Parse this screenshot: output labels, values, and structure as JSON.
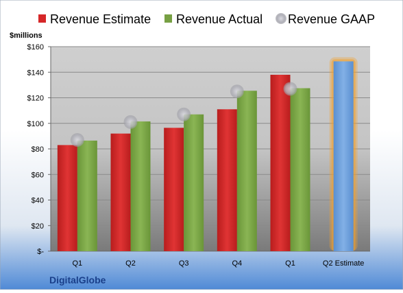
{
  "chart_data": {
    "type": "bar",
    "categories": [
      "Q1",
      "Q2",
      "Q3",
      "Q4",
      "Q1",
      "Q2 Estimate"
    ],
    "series": [
      {
        "name": "Revenue Estimate",
        "color": "#d62728",
        "values": [
          83,
          92,
          96.5,
          111,
          138,
          null
        ]
      },
      {
        "name": "Revenue Actual",
        "color": "#77a043",
        "values": [
          86.5,
          101.5,
          107,
          125.5,
          127.5,
          null
        ]
      },
      {
        "name": "Revenue GAAP",
        "color": "#c0c0c8",
        "marker": "circle",
        "values": [
          87,
          101,
          107,
          125,
          127,
          null
        ]
      }
    ],
    "highlight": {
      "category": "Q2 Estimate",
      "value": 148.5,
      "color": "#6fa0d8",
      "glow": "#f0a030"
    },
    "ylabel": "$millions",
    "ylim": [
      0,
      160
    ],
    "yticks": [
      0,
      20,
      40,
      60,
      80,
      100,
      120,
      140,
      160
    ],
    "yticklabels": [
      "$-",
      "$20",
      "$40",
      "$60",
      "$80",
      "$100",
      "$120",
      "$140",
      "$160"
    ],
    "grid": true,
    "legend": "top"
  },
  "company": "DigitalGlobe"
}
